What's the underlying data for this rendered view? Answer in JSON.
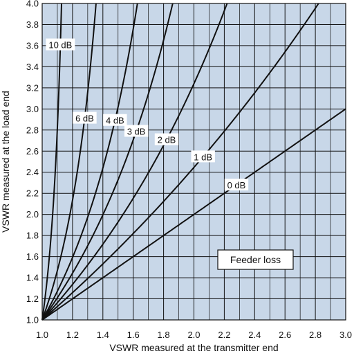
{
  "chart_data": {
    "type": "line",
    "title": "",
    "xlabel": "VSWR measured at the transmitter end",
    "ylabel": "VSWR measured at the load end",
    "xlim": [
      1.0,
      3.0
    ],
    "ylim": [
      1.0,
      4.0
    ],
    "grid": true,
    "x_ticks": [
      "1.0",
      "1.2",
      "1.4",
      "1.6",
      "1.8",
      "2.0",
      "2.2",
      "2.4",
      "2.6",
      "2.8",
      "3.0"
    ],
    "y_ticks": [
      "1.0",
      "1.2",
      "1.4",
      "1.6",
      "1.8",
      "2.0",
      "2.2",
      "2.4",
      "2.6",
      "2.8",
      "3.0",
      "3.2",
      "3.4",
      "3.6",
      "3.8",
      "4.0"
    ],
    "annotation": "Feeder loss",
    "series": [
      {
        "name": "0 dB",
        "loss_db": 0
      },
      {
        "name": "1 dB",
        "loss_db": 1
      },
      {
        "name": "2 dB",
        "loss_db": 2
      },
      {
        "name": "3 dB",
        "loss_db": 3
      },
      {
        "name": "4 dB",
        "loss_db": 4
      },
      {
        "name": "6 dB",
        "loss_db": 6
      },
      {
        "name": "10 dB",
        "loss_db": 10
      }
    ],
    "colors": {
      "plot_background": "#c8d7e8",
      "grid": "#111111",
      "curve": "#111111",
      "label_background": "#ffffff"
    }
  }
}
